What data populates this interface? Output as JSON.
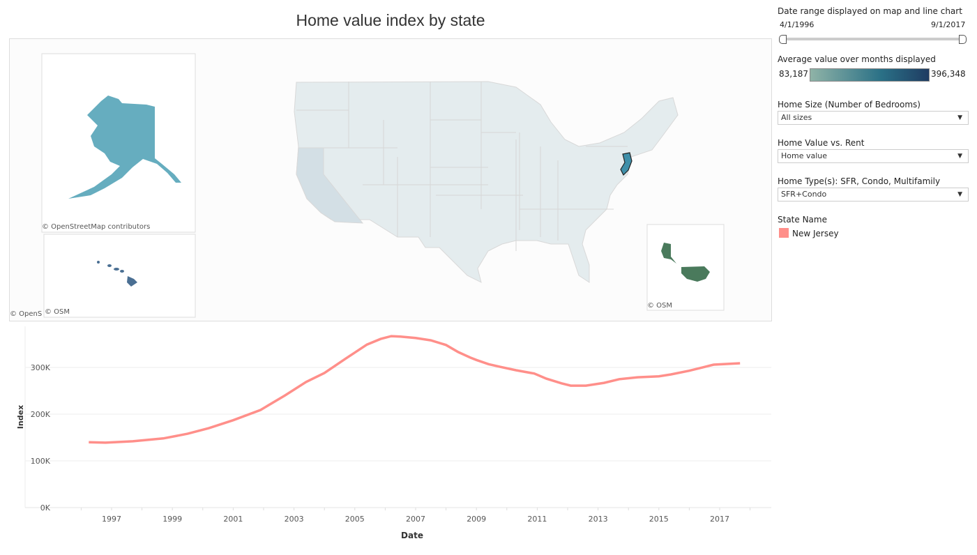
{
  "title": "Home value index by state",
  "map": {
    "attribution_main": "© OpenStreetMap contributors",
    "attribution_short": "© OSM",
    "attribution_cut": "© OpenS",
    "highlighted_state": "New Jersey"
  },
  "sidebar": {
    "date_range": {
      "label": "Date range displayed on map and line chart",
      "start": "4/1/1996",
      "end": "9/1/2017"
    },
    "color_legend": {
      "label": "Average value over months displayed",
      "min": "83,187",
      "max": "396,348",
      "colors": [
        "#8fb3a7",
        "#2a7086",
        "#1f3c62"
      ]
    },
    "filters": [
      {
        "label": "Home Size (Number of Bedrooms)",
        "value": "All sizes"
      },
      {
        "label": "Home Value vs. Rent",
        "value": "Home value"
      },
      {
        "label": "Home Type(s): SFR, Condo, Multifamily",
        "value": "SFR+Condo"
      }
    ],
    "state_legend": {
      "label": "State Name",
      "items": [
        {
          "name": "New Jersey",
          "color": "#ff8f8a"
        }
      ]
    }
  },
  "chart_data": {
    "type": "line",
    "xlabel": "Date",
    "ylabel": "Index",
    "ylim": [
      0,
      380000
    ],
    "yticks": [
      "0K",
      "100K",
      "200K",
      "300K"
    ],
    "xticks": [
      "1997",
      "1999",
      "2001",
      "2003",
      "2005",
      "2007",
      "2009",
      "2011",
      "2013",
      "2015",
      "2017"
    ],
    "grid": true,
    "series": [
      {
        "name": "New Jersey",
        "color": "#ff8f8a",
        "x": [
          1996.25,
          1996.8,
          1997.7,
          1998.7,
          1999.5,
          2000.2,
          2001.0,
          2001.9,
          2002.7,
          2003.4,
          2004.0,
          2004.7,
          2005.4,
          2005.85,
          2006.2,
          2006.5,
          2007.0,
          2007.5,
          2008.0,
          2008.4,
          2008.8,
          2009.0,
          2009.4,
          2009.8,
          2010.3,
          2010.9,
          2011.3,
          2011.8,
          2012.1,
          2012.6,
          2013.2,
          2013.7,
          2014.3,
          2015.0,
          2015.4,
          2016.0,
          2016.5,
          2016.8,
          2017.67
        ],
        "y": [
          140000,
          139000,
          142000,
          148000,
          158000,
          170000,
          187000,
          209000,
          240000,
          269000,
          288000,
          319000,
          349000,
          361000,
          367000,
          366000,
          363000,
          358000,
          348000,
          333000,
          321000,
          316000,
          307000,
          301000,
          294000,
          287000,
          276000,
          266000,
          261000,
          261000,
          267000,
          275000,
          279000,
          281000,
          285000,
          293000,
          301000,
          306000,
          309000
        ]
      }
    ]
  }
}
